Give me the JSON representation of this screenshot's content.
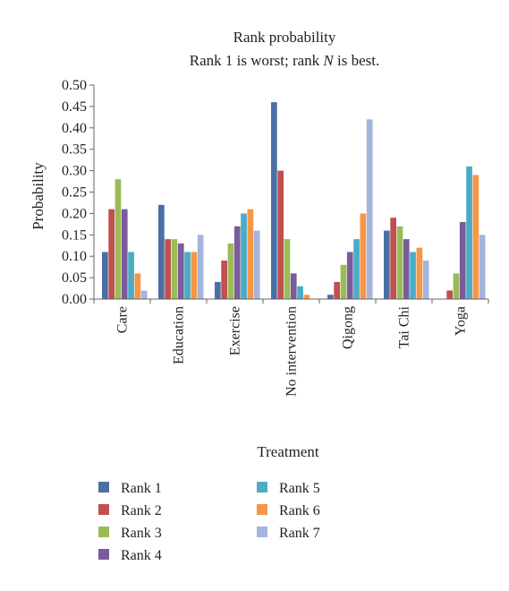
{
  "chart_data": {
    "type": "bar",
    "title": "Rank probability",
    "subtitle": {
      "before": "Rank 1 is worst; rank ",
      "italic": "N",
      "after": " is best."
    },
    "xlabel": "Treatment",
    "ylabel": "Probability",
    "ylim": [
      0,
      0.5
    ],
    "yticks": [
      "0.00",
      "0.05",
      "0.10",
      "0.15",
      "0.20",
      "0.25",
      "0.30",
      "0.35",
      "0.40",
      "0.45",
      "0.50"
    ],
    "grid": false,
    "legend_position": "bottom",
    "categories": [
      "Care",
      "Education",
      "Exercise",
      "No intervention",
      "Qigong",
      "Tai Chi",
      "Yoga"
    ],
    "series": [
      {
        "name": "Rank 1",
        "color": "#4a6fa5",
        "values": [
          0.11,
          0.22,
          0.04,
          0.46,
          0.01,
          0.16,
          0.0
        ]
      },
      {
        "name": "Rank 2",
        "color": "#c0504d",
        "values": [
          0.21,
          0.14,
          0.09,
          0.3,
          0.04,
          0.19,
          0.02
        ]
      },
      {
        "name": "Rank 3",
        "color": "#9bbb59",
        "values": [
          0.28,
          0.14,
          0.13,
          0.14,
          0.08,
          0.17,
          0.06
        ]
      },
      {
        "name": "Rank 4",
        "color": "#7b5b9b",
        "values": [
          0.21,
          0.13,
          0.17,
          0.06,
          0.11,
          0.14,
          0.18
        ]
      },
      {
        "name": "Rank 5",
        "color": "#4bacc6",
        "values": [
          0.11,
          0.11,
          0.2,
          0.03,
          0.14,
          0.11,
          0.31
        ]
      },
      {
        "name": "Rank 6",
        "color": "#f79646",
        "values": [
          0.06,
          0.11,
          0.21,
          0.01,
          0.2,
          0.12,
          0.29
        ]
      },
      {
        "name": "Rank 7",
        "color": "#a5b4dc",
        "values": [
          0.02,
          0.15,
          0.16,
          0.0,
          0.42,
          0.09,
          0.15
        ]
      }
    ]
  }
}
